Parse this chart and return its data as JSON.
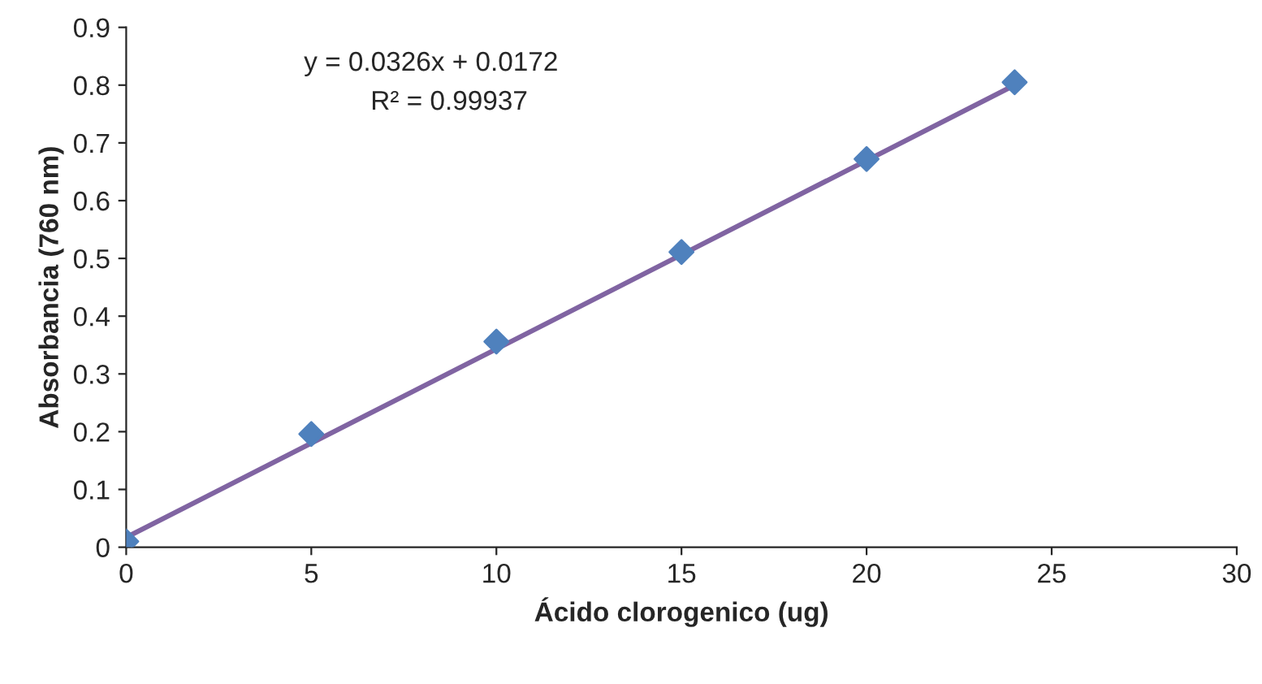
{
  "chart_data": {
    "type": "scatter",
    "xlabel": "Ácido clorogenico (ug)",
    "ylabel": "Absorbancia (760 nm)",
    "series": [
      {
        "type": "line",
        "color": "#8064a2",
        "x": [
          0,
          24
        ],
        "values": [
          0.017,
          0.8
        ],
        "marker": "none",
        "line_style": "solid"
      },
      {
        "color": "#4f81bd",
        "x": [
          0,
          5,
          10,
          15,
          20,
          24
        ],
        "values": [
          0.01,
          0.196,
          0.356,
          0.511,
          0.672,
          0.805
        ],
        "marker": "diamond"
      }
    ],
    "annotations": [
      "y = 0.0326x + 0.0172",
      "R² = 0.99937"
    ],
    "xlim": [
      0,
      30
    ],
    "xticks": [
      0,
      5,
      10,
      15,
      20,
      25,
      30
    ],
    "ylim": [
      0,
      0.9
    ],
    "yticks": [
      0,
      0.1,
      0.2,
      0.3,
      0.4,
      0.5,
      0.6,
      0.7,
      0.8,
      0.9
    ],
    "grid": false,
    "legend": false
  }
}
